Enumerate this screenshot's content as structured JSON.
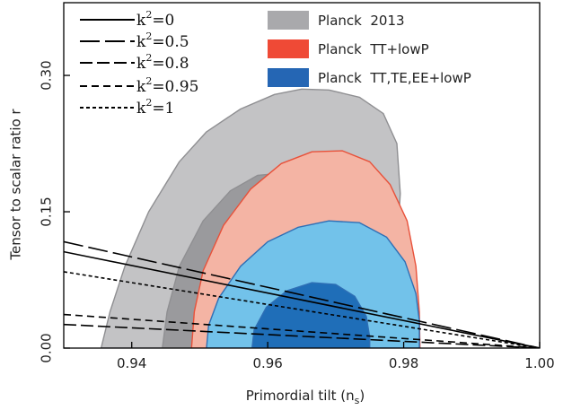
{
  "chart_data": {
    "type": "contour",
    "xlabel": "Primordial tilt (n",
    "xlabel_sub": "s",
    "xlabel_close": ")",
    "ylabel": "Tensor to scalar ratio r",
    "xlim": [
      0.93,
      1.0
    ],
    "ylim": [
      0.0,
      0.38
    ],
    "xticks": [
      {
        "value": 0.94,
        "label": "0.94"
      },
      {
        "value": 0.96,
        "label": "0.96"
      },
      {
        "value": 0.98,
        "label": "0.98"
      },
      {
        "value": 1.0,
        "label": "1.00"
      }
    ],
    "yticks": [
      {
        "value": 0.0,
        "label": "0.00"
      },
      {
        "value": 0.15,
        "label": "0.15"
      },
      {
        "value": 0.3,
        "label": "0.30"
      }
    ],
    "colors": {
      "planck2013_outer": "#c3c3c5",
      "planck2013_inner": "#9a9a9d",
      "planck2013_edge": "#8f8f92",
      "tt_outer": "#f4b4a4",
      "tt_inner": "#ea8a78",
      "tt_edge": "#e8513a",
      "ttteee_outer": "#72c2ea",
      "ttteee_inner": "#1f6eb8",
      "ttteee_edge": "#2f6fb5"
    },
    "legend_regions": [
      {
        "label": "Planck  2013",
        "color": "#a9a9ac"
      },
      {
        "label": "Planck  TT+lowP",
        "color": "#ef4a36"
      },
      {
        "label": "Planck  TT,TE,EE+lowP",
        "color": "#2566b4"
      }
    ],
    "legend_lines": [
      {
        "value": "0",
        "dash": ""
      },
      {
        "value": "0.5",
        "dash": "22 6"
      },
      {
        "value": "0.8",
        "dash": "14 5"
      },
      {
        "value": "0.95",
        "dash": "8 5"
      },
      {
        "value": "1",
        "dash": "4 3"
      }
    ],
    "legend_line_prefix": "k",
    "legend_line_sup": "2",
    "legend_line_eq": "=",
    "lines": [
      {
        "dash": "",
        "points": [
          [
            0.93,
            0.106
          ],
          [
            1.0,
            0.0
          ]
        ]
      },
      {
        "dash": "22 6",
        "points": [
          [
            0.93,
            0.117
          ],
          [
            1.0,
            0.0
          ]
        ]
      },
      {
        "dash": "14 5",
        "points": [
          [
            0.93,
            0.026
          ],
          [
            1.0,
            0.0
          ]
        ]
      },
      {
        "dash": "8 5",
        "points": [
          [
            0.93,
            0.037
          ],
          [
            1.0,
            0.0
          ]
        ]
      },
      {
        "dash": "4 3",
        "points": [
          [
            0.93,
            0.084
          ],
          [
            1.0,
            0.0
          ]
        ]
      }
    ],
    "regions": [
      {
        "name": "planck2013-outer",
        "fill": "#c3c3c5",
        "stroke": "#8f8f92",
        "points": [
          [
            0.9355,
            0.0
          ],
          [
            0.9368,
            0.04
          ],
          [
            0.939,
            0.09
          ],
          [
            0.9425,
            0.15
          ],
          [
            0.947,
            0.205
          ],
          [
            0.951,
            0.238
          ],
          [
            0.956,
            0.263
          ],
          [
            0.961,
            0.279
          ],
          [
            0.965,
            0.285
          ],
          [
            0.969,
            0.284
          ],
          [
            0.9735,
            0.276
          ],
          [
            0.977,
            0.258
          ],
          [
            0.979,
            0.225
          ],
          [
            0.9795,
            0.17
          ],
          [
            0.979,
            0.11
          ],
          [
            0.9785,
            0.05
          ],
          [
            0.9783,
            0.0
          ]
        ]
      },
      {
        "name": "planck2013-inner",
        "fill": "#9a9a9d",
        "stroke": "#8f8f92",
        "points": [
          [
            0.9445,
            0.0
          ],
          [
            0.9452,
            0.04
          ],
          [
            0.947,
            0.09
          ],
          [
            0.9505,
            0.14
          ],
          [
            0.9545,
            0.173
          ],
          [
            0.9585,
            0.19
          ],
          [
            0.9615,
            0.192
          ],
          [
            0.9645,
            0.18
          ],
          [
            0.9668,
            0.15
          ],
          [
            0.968,
            0.11
          ],
          [
            0.9683,
            0.07
          ],
          [
            0.9688,
            0.03
          ],
          [
            0.9693,
            0.0
          ]
        ]
      },
      {
        "name": "tt-outer",
        "fill": "#f4b4a4",
        "stroke": "#e8513a",
        "points": [
          [
            0.9488,
            0.0
          ],
          [
            0.9492,
            0.04
          ],
          [
            0.9505,
            0.085
          ],
          [
            0.9535,
            0.135
          ],
          [
            0.9575,
            0.175
          ],
          [
            0.962,
            0.203
          ],
          [
            0.9665,
            0.216
          ],
          [
            0.971,
            0.217
          ],
          [
            0.975,
            0.205
          ],
          [
            0.978,
            0.18
          ],
          [
            0.9805,
            0.14
          ],
          [
            0.9818,
            0.09
          ],
          [
            0.9823,
            0.04
          ],
          [
            0.9824,
            0.0
          ]
        ]
      },
      {
        "name": "tt-inner",
        "fill": "#ea8a78",
        "stroke": "#e8513a",
        "points": [
          [
            0.9555,
            0.0
          ],
          [
            0.956,
            0.03
          ],
          [
            0.958,
            0.065
          ],
          [
            0.9615,
            0.09
          ],
          [
            0.9655,
            0.1
          ],
          [
            0.9695,
            0.098
          ],
          [
            0.9725,
            0.085
          ],
          [
            0.9745,
            0.06
          ],
          [
            0.9758,
            0.03
          ],
          [
            0.976,
            0.0
          ]
        ]
      },
      {
        "name": "ttteee-outer",
        "fill": "#72c2ea",
        "stroke": "#2f6fb5",
        "points": [
          [
            0.951,
            0.0
          ],
          [
            0.9513,
            0.025
          ],
          [
            0.9528,
            0.055
          ],
          [
            0.956,
            0.09
          ],
          [
            0.96,
            0.117
          ],
          [
            0.9645,
            0.133
          ],
          [
            0.969,
            0.14
          ],
          [
            0.9735,
            0.138
          ],
          [
            0.9775,
            0.122
          ],
          [
            0.9802,
            0.095
          ],
          [
            0.9818,
            0.06
          ],
          [
            0.9823,
            0.03
          ],
          [
            0.9823,
            0.0
          ]
        ]
      },
      {
        "name": "ttteee-inner",
        "fill": "#1f6eb8",
        "stroke": "#2f6fb5",
        "points": [
          [
            0.9577,
            0.0
          ],
          [
            0.958,
            0.02
          ],
          [
            0.9598,
            0.045
          ],
          [
            0.9628,
            0.063
          ],
          [
            0.9665,
            0.072
          ],
          [
            0.97,
            0.07
          ],
          [
            0.9728,
            0.057
          ],
          [
            0.9745,
            0.035
          ],
          [
            0.975,
            0.012
          ],
          [
            0.975,
            0.0
          ]
        ]
      }
    ],
    "grid": false,
    "legend_placement": "top"
  }
}
